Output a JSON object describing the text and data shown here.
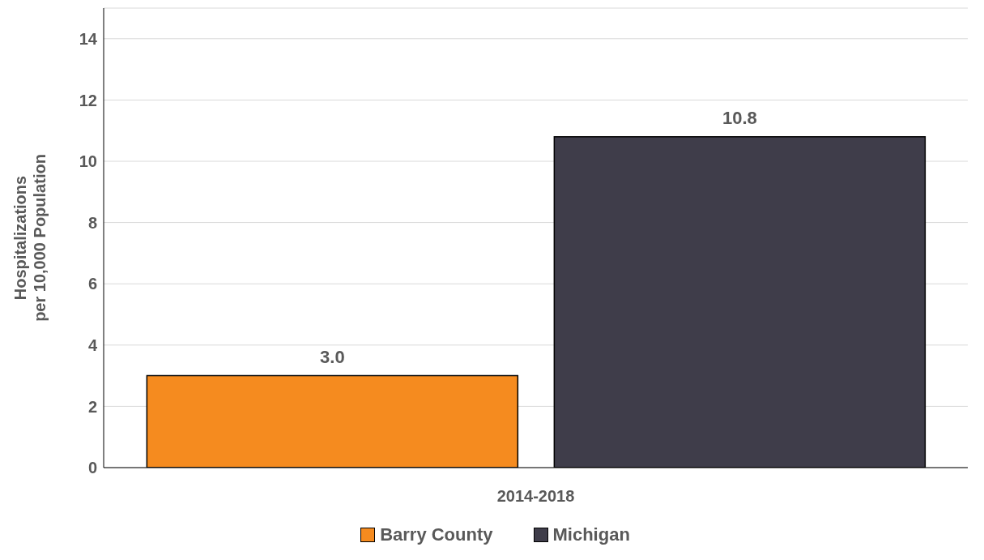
{
  "chart_data": {
    "type": "bar",
    "categories": [
      "2014-2018"
    ],
    "ylabel": "Hospitalizations\nper 10,000 Population",
    "series": [
      {
        "name": "Barry County",
        "color": "#f58b1f",
        "values": [
          3.0
        ],
        "value_labels": [
          "3.0"
        ]
      },
      {
        "name": "Michigan",
        "color": "#3f3d4a",
        "values": [
          10.8
        ],
        "value_labels": [
          "10.8"
        ]
      }
    ],
    "ylim": [
      0,
      15
    ],
    "yticks": [
      0,
      2,
      4,
      6,
      8,
      10,
      12,
      14
    ],
    "grid": "y",
    "legend": "bottom"
  }
}
